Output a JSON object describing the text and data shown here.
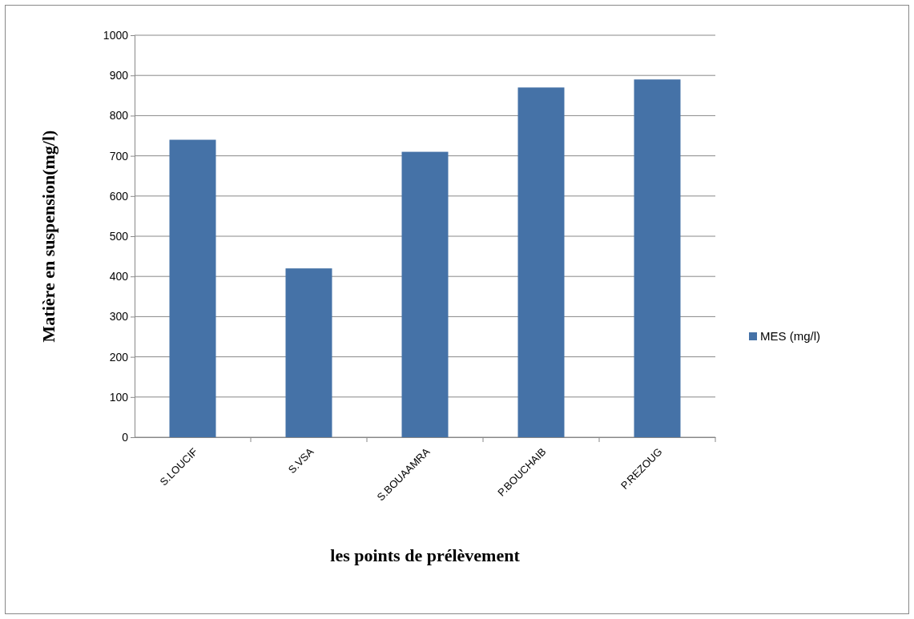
{
  "chart_data": {
    "type": "bar",
    "xlabel": "les points de prélèvement",
    "ylabel": "Matière en suspension(mg/l)",
    "categories": [
      "S.LOUCIF",
      "S.VSA",
      "S.BOUAAMRA",
      "P.BOUCHAIB",
      "P.REZOUG"
    ],
    "series": [
      {
        "name": "MES (mg/l)",
        "color": "#4572a7",
        "values": [
          740,
          420,
          710,
          870,
          890
        ]
      }
    ],
    "ylim": [
      0,
      1000
    ],
    "yticks": [
      0,
      100,
      200,
      300,
      400,
      500,
      600,
      700,
      800,
      900,
      1000
    ],
    "grid": "y",
    "legend": "right"
  }
}
